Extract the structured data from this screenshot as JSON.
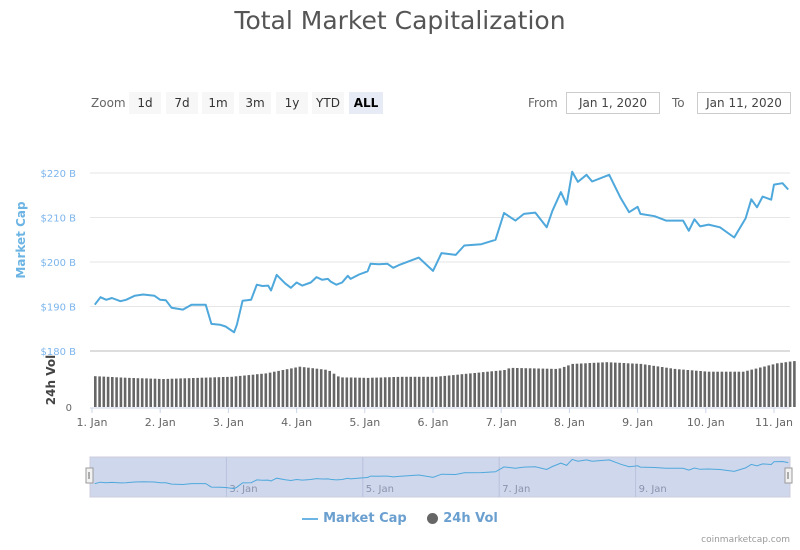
{
  "title": "Total Market Capitalization",
  "range_selector": {
    "zoom_label": "Zoom",
    "buttons": [
      "1d",
      "7d",
      "1m",
      "3m",
      "1y",
      "YTD",
      "ALL"
    ],
    "active": "ALL",
    "from_label": "From",
    "from_value": "Jan 1, 2020",
    "to_label": "To",
    "to_value": "Jan 11, 2020"
  },
  "legend": {
    "market_cap": "Market Cap",
    "volume": "24h Vol"
  },
  "credit": "coinmarketcap.com",
  "colors": {
    "market_cap": "#4fa8dc",
    "volume": "#666666",
    "navigator_mask": "#cfd7ec"
  },
  "chart_data": {
    "type": "line",
    "title": "Total Market Capitalization",
    "ylabel": "Market Cap",
    "y_ticks": [
      "$180 B",
      "$190 B",
      "$200 B",
      "$210 B",
      "$220 B"
    ],
    "ylim": [
      180,
      220
    ],
    "x_ticks": [
      "1. Jan",
      "2. Jan",
      "3. Jan",
      "4. Jan",
      "5. Jan",
      "6. Jan",
      "7. Jan",
      "8. Jan",
      "9. Jan",
      "10. Jan",
      "11. Jan"
    ],
    "grid": true,
    "legend": "bottom",
    "series": [
      {
        "name": "Market Cap",
        "unit": "B USD",
        "points": [
          [
            "2020-01-01 01:00",
            190.4
          ],
          [
            "2020-01-01 03:00",
            192.1
          ],
          [
            "2020-01-01 05:00",
            191.5
          ],
          [
            "2020-01-01 07:00",
            191.9
          ],
          [
            "2020-01-01 10:00",
            191.2
          ],
          [
            "2020-01-01 12:00",
            191.5
          ],
          [
            "2020-01-01 15:00",
            192.4
          ],
          [
            "2020-01-01 18:00",
            192.7
          ],
          [
            "2020-01-01 22:00",
            192.4
          ],
          [
            "2020-01-02 00:00",
            191.5
          ],
          [
            "2020-01-02 02:00",
            191.4
          ],
          [
            "2020-01-02 04:00",
            189.7
          ],
          [
            "2020-01-02 08:00",
            189.3
          ],
          [
            "2020-01-02 11:00",
            190.4
          ],
          [
            "2020-01-02 14:00",
            190.4
          ],
          [
            "2020-01-02 16:00",
            190.4
          ],
          [
            "2020-01-02 18:00",
            186.1
          ],
          [
            "2020-01-02 21:00",
            185.9
          ],
          [
            "2020-01-02 23:00",
            185.5
          ],
          [
            "2020-01-03 02:00",
            184.2
          ],
          [
            "2020-01-03 03:00",
            185.9
          ],
          [
            "2020-01-03 05:00",
            191.3
          ],
          [
            "2020-01-03 08:00",
            191.5
          ],
          [
            "2020-01-03 10:00",
            194.9
          ],
          [
            "2020-01-03 12:00",
            194.6
          ],
          [
            "2020-01-03 14:00",
            194.7
          ],
          [
            "2020-01-03 15:00",
            193.6
          ],
          [
            "2020-01-03 17:00",
            197.1
          ],
          [
            "2020-01-03 20:00",
            195.2
          ],
          [
            "2020-01-03 22:00",
            194.2
          ],
          [
            "2020-01-04 00:00",
            195.4
          ],
          [
            "2020-01-04 02:00",
            194.7
          ],
          [
            "2020-01-04 05:00",
            195.4
          ],
          [
            "2020-01-04 07:00",
            196.6
          ],
          [
            "2020-01-04 09:00",
            196.0
          ],
          [
            "2020-01-04 11:00",
            196.2
          ],
          [
            "2020-01-04 12:00",
            195.6
          ],
          [
            "2020-01-04 14:00",
            194.9
          ],
          [
            "2020-01-04 16:00",
            195.4
          ],
          [
            "2020-01-04 18:00",
            196.9
          ],
          [
            "2020-01-04 19:00",
            196.2
          ],
          [
            "2020-01-04 22:00",
            197.2
          ],
          [
            "2020-01-05 01:00",
            197.9
          ],
          [
            "2020-01-05 02:00",
            199.6
          ],
          [
            "2020-01-05 05:00",
            199.5
          ],
          [
            "2020-01-05 08:00",
            199.6
          ],
          [
            "2020-01-05 10:00",
            198.7
          ],
          [
            "2020-01-05 12:00",
            199.3
          ],
          [
            "2020-01-05 19:00",
            201.0
          ],
          [
            "2020-01-06 00:00",
            198.0
          ],
          [
            "2020-01-06 03:00",
            202.0
          ],
          [
            "2020-01-06 08:00",
            201.6
          ],
          [
            "2020-01-06 11:00",
            203.7
          ],
          [
            "2020-01-06 17:00",
            204.0
          ],
          [
            "2020-01-06 22:00",
            205.0
          ],
          [
            "2020-01-07 01:00",
            211.0
          ],
          [
            "2020-01-07 05:00",
            209.3
          ],
          [
            "2020-01-07 08:00",
            210.8
          ],
          [
            "2020-01-07 12:00",
            211.1
          ],
          [
            "2020-01-07 16:00",
            207.8
          ],
          [
            "2020-01-07 18:00",
            211.5
          ],
          [
            "2020-01-07 21:00",
            215.7
          ],
          [
            "2020-01-07 23:00",
            212.9
          ],
          [
            "2020-01-08 01:00",
            220.3
          ],
          [
            "2020-01-08 03:00",
            218.0
          ],
          [
            "2020-01-08 06:00",
            219.6
          ],
          [
            "2020-01-08 08:00",
            218.1
          ],
          [
            "2020-01-08 14:00",
            219.6
          ],
          [
            "2020-01-08 18:00",
            214.4
          ],
          [
            "2020-01-08 21:00",
            211.2
          ],
          [
            "2020-01-09 00:00",
            212.4
          ],
          [
            "2020-01-09 01:00",
            210.8
          ],
          [
            "2020-01-09 06:00",
            210.3
          ],
          [
            "2020-01-09 10:00",
            209.3
          ],
          [
            "2020-01-09 16:00",
            209.3
          ],
          [
            "2020-01-09 18:00",
            207.0
          ],
          [
            "2020-01-09 20:00",
            209.6
          ],
          [
            "2020-01-09 22:00",
            208.0
          ],
          [
            "2020-01-10 01:00",
            208.4
          ],
          [
            "2020-01-10 05:00",
            207.8
          ],
          [
            "2020-01-10 10:00",
            205.5
          ],
          [
            "2020-01-10 14:00",
            209.8
          ],
          [
            "2020-01-10 16:00",
            214.1
          ],
          [
            "2020-01-10 18:00",
            212.3
          ],
          [
            "2020-01-10 20:00",
            214.7
          ],
          [
            "2020-01-10 23:00",
            214.0
          ],
          [
            "2020-01-11 00:00",
            217.4
          ],
          [
            "2020-01-11 03:00",
            217.7
          ],
          [
            "2020-01-11 05:00",
            216.3
          ]
        ]
      },
      {
        "name": "24h Vol",
        "type": "bar",
        "ylabel": "24h Vol",
        "y_ticks": [
          "0"
        ],
        "relative_to_axis_max": true,
        "points": [
          [
            "2020-01-01 00:00",
            0.55
          ],
          [
            "2020-01-01 12:00",
            0.52
          ],
          [
            "2020-01-02 00:00",
            0.5
          ],
          [
            "2020-01-02 12:00",
            0.52
          ],
          [
            "2020-01-03 00:00",
            0.54
          ],
          [
            "2020-01-03 12:00",
            0.6
          ],
          [
            "2020-01-04 00:00",
            0.72
          ],
          [
            "2020-01-04 10:00",
            0.66
          ],
          [
            "2020-01-04 14:00",
            0.53
          ],
          [
            "2020-01-05 00:00",
            0.52
          ],
          [
            "2020-01-05 12:00",
            0.54
          ],
          [
            "2020-01-06 00:00",
            0.54
          ],
          [
            "2020-01-06 12:00",
            0.6
          ],
          [
            "2020-01-07 00:00",
            0.66
          ],
          [
            "2020-01-07 02:00",
            0.7
          ],
          [
            "2020-01-07 19:00",
            0.68
          ],
          [
            "2020-01-08 00:00",
            0.77
          ],
          [
            "2020-01-08 12:00",
            0.8
          ],
          [
            "2020-01-09 00:00",
            0.77
          ],
          [
            "2020-01-09 12:00",
            0.68
          ],
          [
            "2020-01-10 00:00",
            0.63
          ],
          [
            "2020-01-10 12:00",
            0.63
          ],
          [
            "2020-01-11 00:00",
            0.78
          ],
          [
            "2020-01-11 06:00",
            0.82
          ]
        ]
      }
    ],
    "navigator": {
      "x_ticks": [
        "3. Jan",
        "5. Jan",
        "7. Jan",
        "9. Jan"
      ]
    }
  }
}
